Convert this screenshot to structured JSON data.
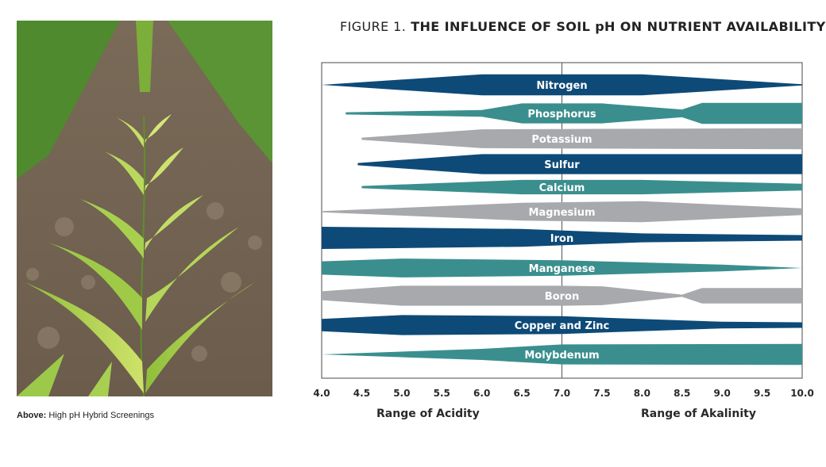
{
  "caption": {
    "bold": "Above:",
    "text": " High pH Hybrid Screenings"
  },
  "figure": {
    "title_prefix": "FIGURE 1.",
    "title_main": " THE INFLUENCE OF SOIL pH ON NUTRIENT AVAILABILITY"
  },
  "colors": {
    "navy": "#0e4a77",
    "teal": "#3a8f8e",
    "gray": "#a7a9ac"
  },
  "chart_data": {
    "type": "area",
    "title": "FIGURE 1. THE INFLUENCE OF SOIL pH ON NUTRIENT AVAILABILITY",
    "xlabel_left": "Range of Acidity",
    "xlabel_right": "Range of Akalinity",
    "xlim": [
      4.0,
      10.0
    ],
    "x_ticks": [
      "4.0",
      "4.5",
      "5.0",
      "5.5",
      "6.0",
      "6.5",
      "7.0",
      "7.5",
      "8.0",
      "8.5",
      "9.0",
      "9.5",
      "10.0"
    ],
    "grid": "vertical line at 7.0",
    "value_meaning": "relative availability (band thickness, 0-1)",
    "series": [
      {
        "name": "Nitrogen",
        "color": "navy",
        "points": [
          [
            4.0,
            0.0
          ],
          [
            6.0,
            0.95
          ],
          [
            8.0,
            0.95
          ],
          [
            10.0,
            0.05
          ]
        ]
      },
      {
        "name": "Phosphorus",
        "color": "teal",
        "points": [
          [
            4.3,
            0.1
          ],
          [
            6.0,
            0.3
          ],
          [
            6.5,
            0.9
          ],
          [
            7.5,
            0.9
          ],
          [
            8.5,
            0.35
          ],
          [
            8.75,
            0.95
          ],
          [
            10.0,
            0.95
          ]
        ]
      },
      {
        "name": "Potassium",
        "color": "gray",
        "points": [
          [
            4.5,
            0.1
          ],
          [
            6.0,
            0.85
          ],
          [
            10.0,
            0.95
          ]
        ]
      },
      {
        "name": "Sulfur",
        "color": "navy",
        "points": [
          [
            4.45,
            0.1
          ],
          [
            6.0,
            0.9
          ],
          [
            10.0,
            0.9
          ]
        ]
      },
      {
        "name": "Calcium",
        "color": "teal",
        "points": [
          [
            4.5,
            0.1
          ],
          [
            6.5,
            0.65
          ],
          [
            8.0,
            0.65
          ],
          [
            10.0,
            0.3
          ]
        ]
      },
      {
        "name": "Magnesium",
        "color": "gray",
        "points": [
          [
            4.0,
            0.05
          ],
          [
            6.5,
            0.8
          ],
          [
            8.0,
            0.95
          ],
          [
            10.0,
            0.3
          ]
        ]
      },
      {
        "name": "Iron",
        "color": "navy",
        "points": [
          [
            4.0,
            1.0
          ],
          [
            6.5,
            0.8
          ],
          [
            8.0,
            0.4
          ],
          [
            10.0,
            0.25
          ]
        ]
      },
      {
        "name": "Manganese",
        "color": "teal",
        "points": [
          [
            4.0,
            0.6
          ],
          [
            5.0,
            0.85
          ],
          [
            7.0,
            0.7
          ],
          [
            9.0,
            0.3
          ],
          [
            10.0,
            0.0
          ]
        ]
      },
      {
        "name": "Boron",
        "color": "gray",
        "points": [
          [
            4.0,
            0.4
          ],
          [
            5.0,
            0.9
          ],
          [
            7.0,
            0.9
          ],
          [
            7.5,
            0.85
          ],
          [
            8.5,
            0.1
          ],
          [
            8.75,
            0.7
          ],
          [
            10.0,
            0.7
          ]
        ]
      },
      {
        "name": "Copper and Zinc",
        "color": "navy",
        "points": [
          [
            4.0,
            0.55
          ],
          [
            5.0,
            0.9
          ],
          [
            7.0,
            0.8
          ],
          [
            9.0,
            0.3
          ],
          [
            10.0,
            0.25
          ]
        ]
      },
      {
        "name": "Molybdenum",
        "color": "teal",
        "points": [
          [
            4.0,
            0.0
          ],
          [
            6.0,
            0.5
          ],
          [
            7.0,
            0.9
          ],
          [
            10.0,
            0.95
          ]
        ]
      }
    ]
  }
}
